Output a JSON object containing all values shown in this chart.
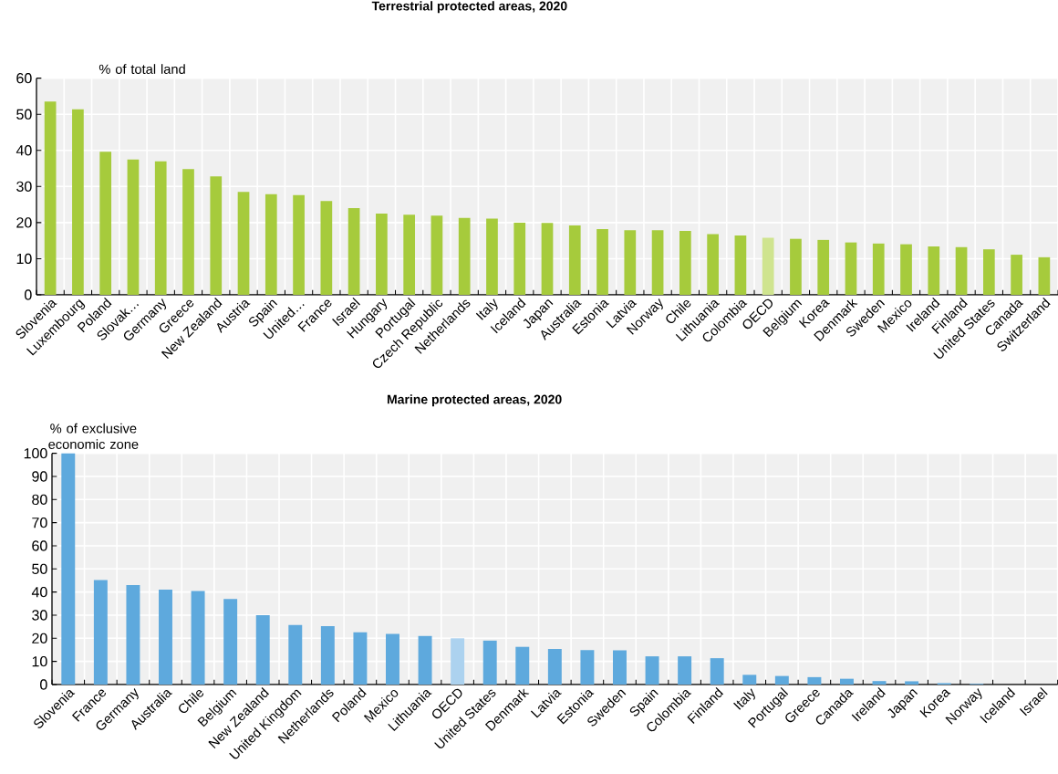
{
  "chart_data": [
    {
      "type": "bar",
      "title": "Terrestrial protected areas, 2020",
      "ylabel": "% of total land",
      "categories": [
        "Slovenia",
        "Luxembourg",
        "Poland",
        "Slovak…",
        "Germany",
        "Greece",
        "New Zealand",
        "Austria",
        "Spain",
        "United…",
        "France",
        "Israel",
        "Hungary",
        "Portugal",
        "Czech Republic",
        "Netherlands",
        "Italy",
        "Iceland",
        "Japan",
        "Australia",
        "Estonia",
        "Latvia",
        "Norway",
        "Chile",
        "Lithuania",
        "Colombia",
        "OECD",
        "Belgium",
        "Korea",
        "Denmark",
        "Sweden",
        "Mexico",
        "Ireland",
        "Finland",
        "United States",
        "Canada",
        "Switzerland"
      ],
      "values": [
        53.5,
        51.4,
        39.6,
        37.5,
        37,
        34.8,
        32.8,
        28.5,
        27.9,
        27.6,
        26,
        24,
        22.5,
        22.2,
        21.9,
        21.3,
        21.1,
        20,
        19.9,
        19.2,
        18.2,
        17.9,
        17.9,
        17.7,
        16.8,
        16.4,
        15.8,
        15.5,
        15.2,
        14.5,
        14.2,
        14,
        13.4,
        13.2,
        12.6,
        11.1,
        10.4
      ],
      "colors": [
        "#a6cb3c",
        "#a6cb3c",
        "#a6cb3c",
        "#a6cb3c",
        "#a6cb3c",
        "#a6cb3c",
        "#a6cb3c",
        "#a6cb3c",
        "#a6cb3c",
        "#a6cb3c",
        "#a6cb3c",
        "#a6cb3c",
        "#a6cb3c",
        "#a6cb3c",
        "#a6cb3c",
        "#a6cb3c",
        "#a6cb3c",
        "#a6cb3c",
        "#a6cb3c",
        "#a6cb3c",
        "#a6cb3c",
        "#a6cb3c",
        "#a6cb3c",
        "#a6cb3c",
        "#a6cb3c",
        "#a6cb3c",
        "#cfe48f",
        "#a6cb3c",
        "#a6cb3c",
        "#a6cb3c",
        "#a6cb3c",
        "#a6cb3c",
        "#a6cb3c",
        "#a6cb3c",
        "#a6cb3c",
        "#a6cb3c",
        "#a6cb3c"
      ],
      "ylim": [
        0,
        60
      ],
      "yticks": [
        0,
        10,
        20,
        30,
        40,
        50,
        60
      ],
      "grid": true
    },
    {
      "type": "bar",
      "title": "Marine protected areas, 2020",
      "ylabel": "% of exclusive economic zone",
      "categories": [
        "Slovenia",
        "France",
        "Germany",
        "Australia",
        "Chile",
        "Belgium",
        "New Zealand",
        "United Kingdom",
        "Netherlands",
        "Poland",
        "Mexico",
        "Lithuania",
        "OECD",
        "United States",
        "Denmark",
        "Latvia",
        "Estonia",
        "Sweden",
        "Spain",
        "Colombia",
        "Finland",
        "Italy",
        "Portugal",
        "Greece",
        "Canada",
        "Ireland",
        "Japan",
        "Korea",
        "Norway",
        "Iceland",
        "Israel"
      ],
      "values": [
        100,
        45.2,
        43,
        41,
        40.5,
        37,
        30,
        25.8,
        25.3,
        22.6,
        21.9,
        21,
        20,
        19,
        16.3,
        15.4,
        14.9,
        14.8,
        12.2,
        12.2,
        11.4,
        4.2,
        3.7,
        3.2,
        2.5,
        1.5,
        1.4,
        0.6,
        0.3,
        0,
        0
      ],
      "colors": [
        "#5ea9dd",
        "#5ea9dd",
        "#5ea9dd",
        "#5ea9dd",
        "#5ea9dd",
        "#5ea9dd",
        "#5ea9dd",
        "#5ea9dd",
        "#5ea9dd",
        "#5ea9dd",
        "#5ea9dd",
        "#5ea9dd",
        "#acd2ef",
        "#5ea9dd",
        "#5ea9dd",
        "#5ea9dd",
        "#5ea9dd",
        "#5ea9dd",
        "#5ea9dd",
        "#5ea9dd",
        "#5ea9dd",
        "#5ea9dd",
        "#5ea9dd",
        "#5ea9dd",
        "#5ea9dd",
        "#5ea9dd",
        "#5ea9dd",
        "#5ea9dd",
        "#5ea9dd",
        "#5ea9dd",
        "#5ea9dd"
      ],
      "ylim": [
        0,
        100
      ],
      "yticks": [
        0,
        10,
        20,
        30,
        40,
        50,
        60,
        70,
        80,
        90,
        100
      ],
      "grid": true
    }
  ]
}
